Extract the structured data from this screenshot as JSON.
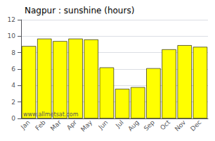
{
  "chart_data": {
    "type": "bar",
    "title": "Nagpur : sunshine (hours)",
    "categories": [
      "Jan",
      "Feb",
      "Mar",
      "Apr",
      "May",
      "Jun",
      "Jul",
      "Aug",
      "Sep",
      "Oct",
      "Nov",
      "Dec"
    ],
    "values": [
      8.8,
      9.7,
      9.4,
      9.7,
      9.6,
      6.2,
      3.6,
      3.8,
      6.1,
      8.4,
      8.9,
      8.7
    ],
    "color": "#ffff00",
    "ylim": [
      0,
      12
    ],
    "yticks": [
      0,
      2,
      4,
      6,
      8,
      10,
      12
    ],
    "grid": true,
    "annotations": [
      "www.allmetsat.com"
    ]
  }
}
